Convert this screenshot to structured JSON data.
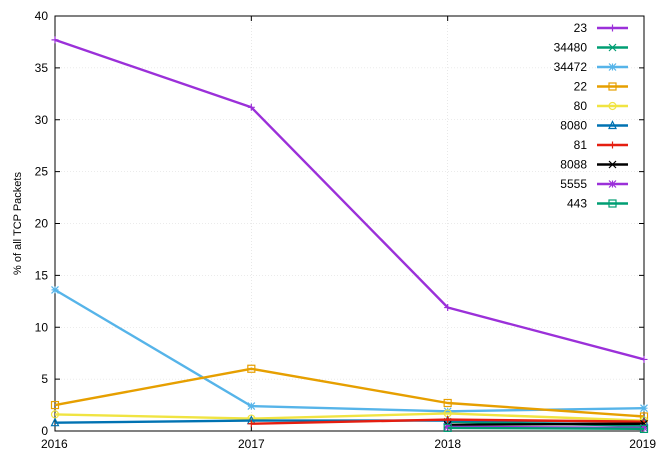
{
  "chart_data": {
    "type": "line",
    "title": "",
    "xlabel": "",
    "ylabel": "% of all TCP Packets",
    "x": [
      2016,
      2017,
      2018,
      2019
    ],
    "xlim": [
      2016,
      2019
    ],
    "ylim": [
      0,
      40
    ],
    "yticks": [
      0,
      5,
      10,
      15,
      20,
      25,
      30,
      35,
      40
    ],
    "grid": true,
    "legend_position": "top-right",
    "series": [
      {
        "name": "23",
        "color": "#9b30d9",
        "marker": "plus",
        "values": [
          37.7,
          31.2,
          11.9,
          6.9
        ]
      },
      {
        "name": "34480",
        "color": "#009e73",
        "marker": "x",
        "values": [
          null,
          null,
          0.9,
          0.5
        ]
      },
      {
        "name": "34472",
        "color": "#56b4e9",
        "marker": "star",
        "values": [
          13.6,
          2.4,
          1.9,
          2.2
        ]
      },
      {
        "name": "22",
        "color": "#e69f00",
        "marker": "square",
        "values": [
          2.5,
          6.0,
          2.7,
          1.4
        ]
      },
      {
        "name": "80",
        "color": "#f0e442",
        "marker": "circle",
        "values": [
          1.6,
          1.2,
          1.7,
          1.0
        ]
      },
      {
        "name": "8080",
        "color": "#0072b2",
        "marker": "triangle",
        "values": [
          0.8,
          1.0,
          1.0,
          0.9
        ]
      },
      {
        "name": "81",
        "color": "#e51e10",
        "marker": "plus",
        "values": [
          null,
          0.7,
          1.1,
          0.9
        ]
      },
      {
        "name": "8088",
        "color": "#000000",
        "marker": "x",
        "values": [
          null,
          null,
          0.6,
          0.7
        ]
      },
      {
        "name": "5555",
        "color": "#9b30d9",
        "marker": "star",
        "values": [
          null,
          null,
          0.4,
          0.3
        ]
      },
      {
        "name": "443",
        "color": "#009e73",
        "marker": "square",
        "values": [
          null,
          null,
          0.3,
          0.2
        ]
      }
    ]
  }
}
